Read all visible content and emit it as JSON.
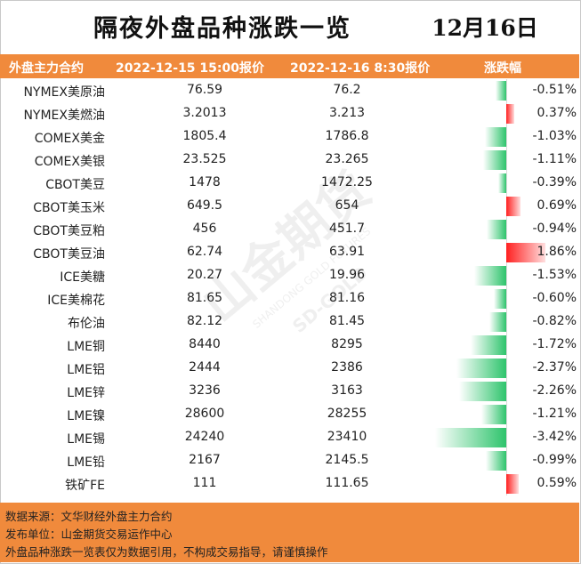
{
  "title": "隔夜外盘品种涨跌一览",
  "date": "12月16日",
  "header": {
    "col_name": "外盘主力合约",
    "col_p1": "2022-12-15 15:00报价",
    "col_p2": "2022-12-16 8:30报价",
    "col_chg": "涨跌幅"
  },
  "rows": [
    {
      "name": "NYMEX美原油",
      "p1": "76.59",
      "p2": "76.2",
      "chg": "-0.51%",
      "pct": -0.51
    },
    {
      "name": "NYMEX美燃油",
      "p1": "3.2013",
      "p2": "3.213",
      "chg": "0.37%",
      "pct": 0.37
    },
    {
      "name": "COMEX美金",
      "p1": "1805.4",
      "p2": "1786.8",
      "chg": "-1.03%",
      "pct": -1.03
    },
    {
      "name": "COMEX美银",
      "p1": "23.525",
      "p2": "23.265",
      "chg": "-1.11%",
      "pct": -1.11
    },
    {
      "name": "CBOT美豆",
      "p1": "1478",
      "p2": "1472.25",
      "chg": "-0.39%",
      "pct": -0.39
    },
    {
      "name": "CBOT美玉米",
      "p1": "649.5",
      "p2": "654",
      "chg": "0.69%",
      "pct": 0.69
    },
    {
      "name": "CBOT美豆粕",
      "p1": "456",
      "p2": "451.7",
      "chg": "-0.94%",
      "pct": -0.94
    },
    {
      "name": "CBOT美豆油",
      "p1": "62.74",
      "p2": "63.91",
      "chg": "1.86%",
      "pct": 1.86
    },
    {
      "name": "ICE美糖",
      "p1": "20.27",
      "p2": "19.96",
      "chg": "-1.53%",
      "pct": -1.53
    },
    {
      "name": "ICE美棉花",
      "p1": "81.65",
      "p2": "81.16",
      "chg": "-0.60%",
      "pct": -0.6
    },
    {
      "name": "布伦油",
      "p1": "82.12",
      "p2": "81.45",
      "chg": "-0.82%",
      "pct": -0.82
    },
    {
      "name": "LME铜",
      "p1": "8440",
      "p2": "8295",
      "chg": "-1.72%",
      "pct": -1.72
    },
    {
      "name": "LME铝",
      "p1": "2444",
      "p2": "2386",
      "chg": "-2.37%",
      "pct": -2.37
    },
    {
      "name": "LME锌",
      "p1": "3236",
      "p2": "3163",
      "chg": "-2.26%",
      "pct": -2.26
    },
    {
      "name": "LME镍",
      "p1": "28600",
      "p2": "28255",
      "chg": "-1.21%",
      "pct": -1.21
    },
    {
      "name": "LME锡",
      "p1": "24240",
      "p2": "23410",
      "chg": "-3.42%",
      "pct": -3.42
    },
    {
      "name": "LME铅",
      "p1": "2167",
      "p2": "2145.5",
      "chg": "-0.99%",
      "pct": -0.99
    },
    {
      "name": "铁矿FE",
      "p1": "111",
      "p2": "111.65",
      "chg": "0.59%",
      "pct": 0.59
    }
  ],
  "footer": {
    "source": "数据来源：文华财经外盘主力合约",
    "publisher": "发布单位：山金期货交易运作中心",
    "disclaimer": "外盘品种涨跌一览表仅为数据引用，不构成交易指导，请谨慎操作"
  },
  "watermark": {
    "brand": "山金期货",
    "en": "SHANDONG GOLD FUTURES",
    "short": "SD-GOLD"
  },
  "colors": {
    "accent": "#F08A3C",
    "up": "#FF2020",
    "down": "#2EC46C"
  }
}
